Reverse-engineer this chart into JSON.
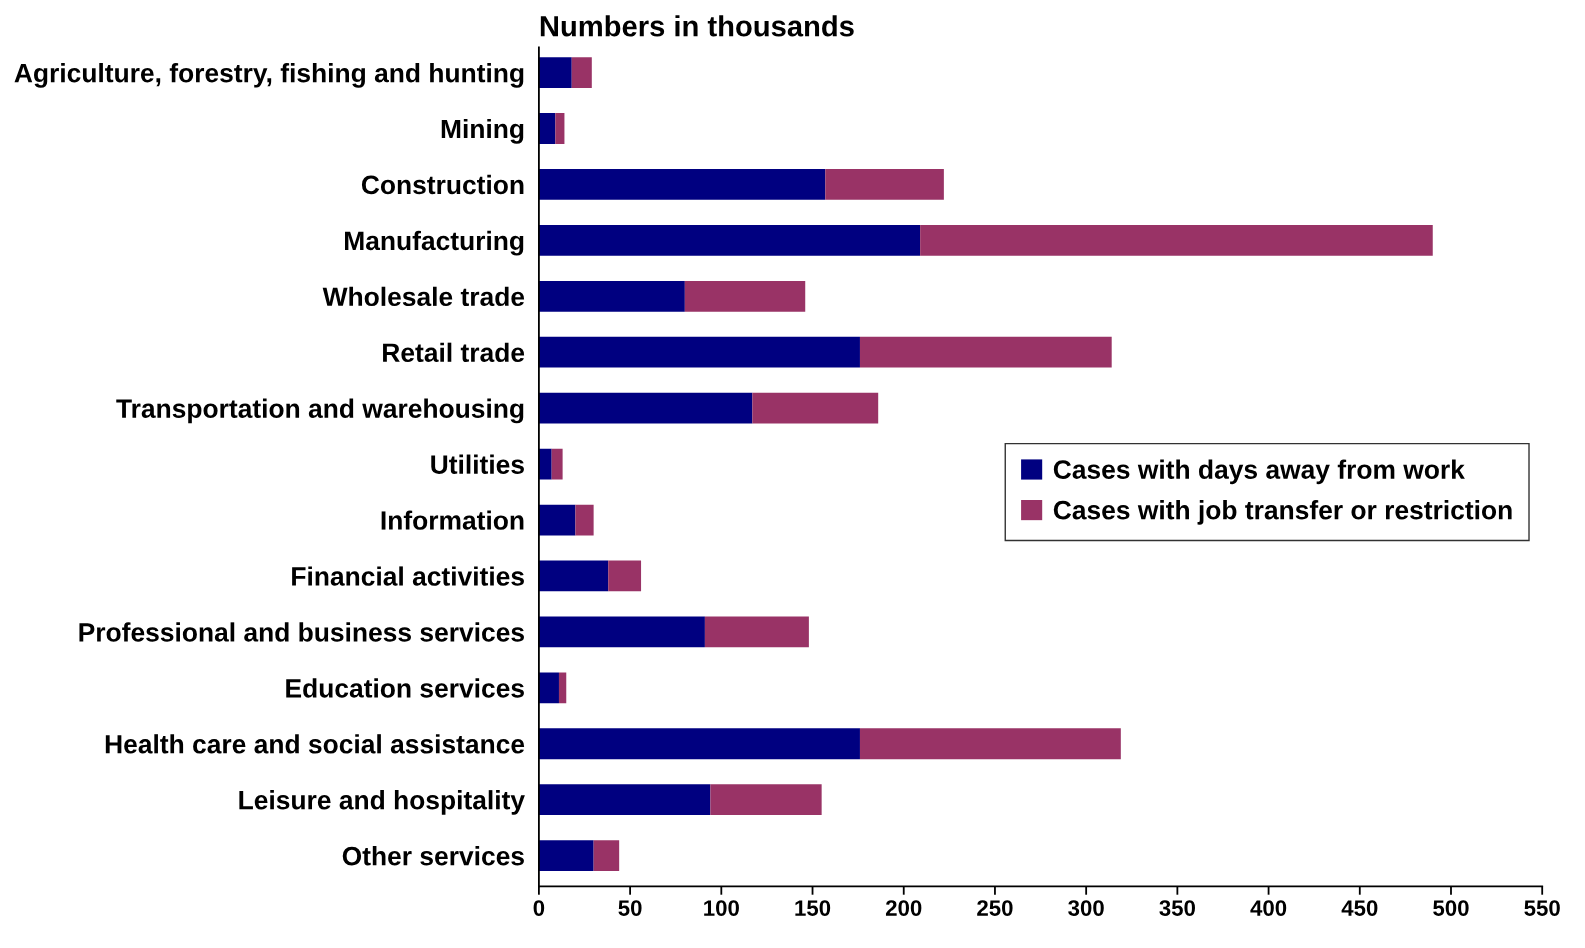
{
  "chart_data": {
    "type": "bar",
    "orientation": "horizontal",
    "stacked": true,
    "title": "Numbers in thousands",
    "categories": [
      "Agriculture, forestry, fishing and hunting",
      "Mining",
      "Construction",
      "Manufacturing",
      "Wholesale trade",
      "Retail trade",
      "Transportation and warehousing",
      "Utilities",
      "Information",
      "Financial activities",
      "Professional and business services",
      "Education services",
      "Health care and social assistance",
      "Leisure and hospitality",
      "Other services"
    ],
    "series": [
      {
        "name": "Cases with days away from work",
        "color": "#000080",
        "values": [
          18,
          9,
          157,
          209,
          80,
          176,
          117,
          7,
          20,
          38,
          91,
          11,
          176,
          94,
          30
        ]
      },
      {
        "name": "Cases with job transfer or restriction",
        "color": "#993366",
        "values": [
          11,
          5,
          65,
          281,
          66,
          138,
          69,
          6,
          10,
          18,
          57,
          4,
          143,
          61,
          14
        ]
      }
    ],
    "xlim": [
      0,
      550
    ],
    "xticks": [
      0,
      50,
      100,
      150,
      200,
      250,
      300,
      350,
      400,
      450,
      500,
      550
    ],
    "grid": false,
    "legend": "right"
  }
}
